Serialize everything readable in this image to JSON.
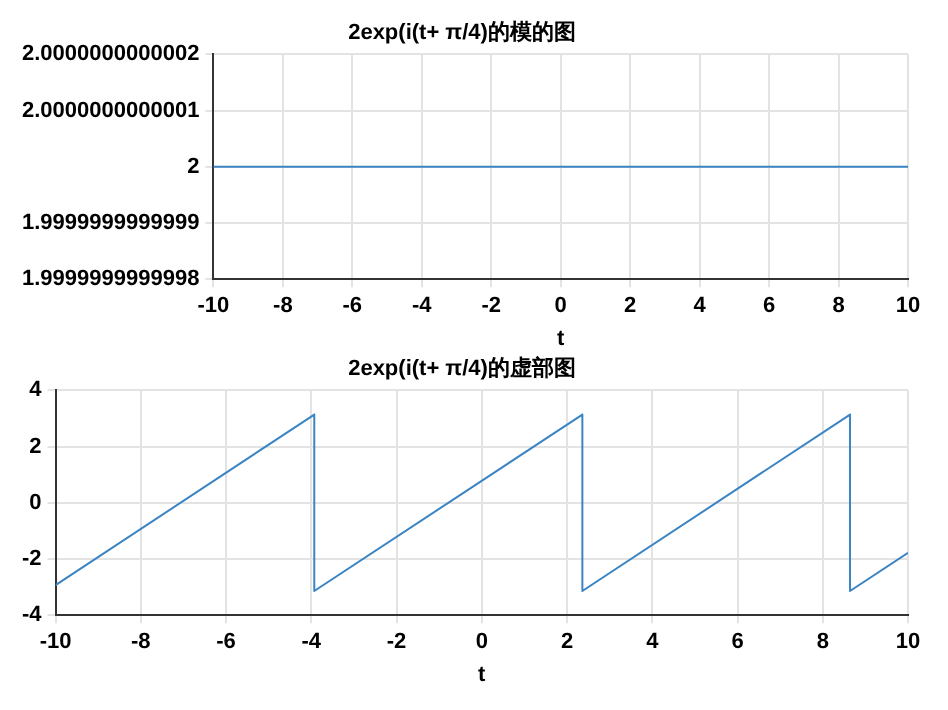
{
  "chart_data": [
    {
      "type": "line",
      "title": "2exp(i(t+ π/4)的模的图",
      "xlabel": "t",
      "x": [
        -10,
        10
      ],
      "series": [
        {
          "color": "#3a84c4",
          "values": [
            2,
            2
          ]
        }
      ],
      "xlim": [
        -10,
        10
      ],
      "xticks": [
        -10,
        -8,
        -6,
        -4,
        -2,
        0,
        2,
        4,
        6,
        8,
        10
      ],
      "ylim": [
        1.9999999999998,
        2.0000000000002
      ],
      "yticks": [
        1.9999999999998,
        1.9999999999999,
        2,
        2.0000000000001,
        2.0000000000002
      ],
      "grid": true,
      "legend": false
    },
    {
      "type": "line",
      "title": "2exp(i(t+ π/4)的虚部图",
      "xlabel": "t",
      "x": [
        -10,
        -3.93,
        -3.93,
        2.36,
        2.36,
        8.64,
        8.64,
        10
      ],
      "series": [
        {
          "color": "#3a84c4",
          "values": [
            -2.93,
            3.14,
            -3.14,
            3.14,
            -3.14,
            3.14,
            -3.14,
            -1.78
          ]
        }
      ],
      "xlim": [
        -10,
        10
      ],
      "xticks": [
        -10,
        -8,
        -6,
        -4,
        -2,
        0,
        2,
        4,
        6,
        8,
        10
      ],
      "ylim": [
        -4,
        4
      ],
      "yticks": [
        -4,
        -2,
        0,
        2,
        4
      ],
      "grid": true,
      "legend": false
    }
  ]
}
